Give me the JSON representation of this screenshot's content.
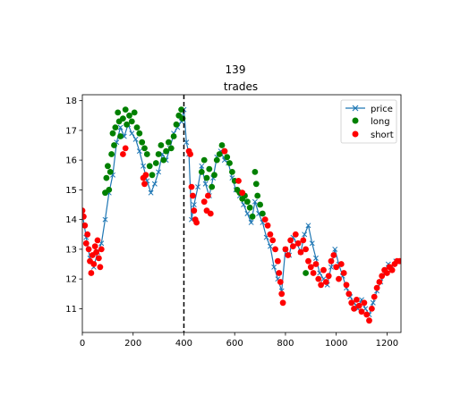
{
  "chart_data": {
    "type": "scatter",
    "suptitle": "139",
    "title": "trades",
    "xlabel": "",
    "ylabel": "",
    "xlim": [
      0,
      1255
    ],
    "ylim": [
      10.2,
      18.2
    ],
    "xticks": [
      0,
      200,
      400,
      600,
      800,
      1000,
      1200
    ],
    "yticks": [
      11,
      12,
      13,
      14,
      15,
      16,
      17,
      18
    ],
    "grid": false,
    "legend_position": "top-right",
    "vline": {
      "x": 400,
      "style": "dashed",
      "color": "#000000"
    },
    "series": [
      {
        "name": "price",
        "kind": "line",
        "marker": "x",
        "color": "#1f77b4",
        "points": [
          [
            0,
            14.2
          ],
          [
            15,
            13.4
          ],
          [
            30,
            12.7
          ],
          [
            45,
            12.4
          ],
          [
            60,
            12.9
          ],
          [
            75,
            13.2
          ],
          [
            90,
            14.0
          ],
          [
            105,
            14.9
          ],
          [
            120,
            15.5
          ],
          [
            135,
            16.6
          ],
          [
            150,
            17.1
          ],
          [
            165,
            16.8
          ],
          [
            180,
            17.2
          ],
          [
            195,
            16.9
          ],
          [
            210,
            16.7
          ],
          [
            225,
            16.3
          ],
          [
            240,
            15.8
          ],
          [
            255,
            15.3
          ],
          [
            270,
            14.9
          ],
          [
            285,
            15.2
          ],
          [
            300,
            15.6
          ],
          [
            315,
            16.2
          ],
          [
            330,
            16.0
          ],
          [
            345,
            16.4
          ],
          [
            360,
            16.9
          ],
          [
            375,
            17.1
          ],
          [
            390,
            17.3
          ],
          [
            400,
            17.7
          ],
          [
            410,
            16.6
          ],
          [
            420,
            16.2
          ],
          [
            430,
            14.0
          ],
          [
            440,
            14.5
          ],
          [
            455,
            15.1
          ],
          [
            470,
            15.8
          ],
          [
            485,
            15.2
          ],
          [
            500,
            14.8
          ],
          [
            515,
            15.4
          ],
          [
            530,
            16.1
          ],
          [
            545,
            16.3
          ],
          [
            560,
            16.0
          ],
          [
            575,
            15.9
          ],
          [
            590,
            15.4
          ],
          [
            605,
            15.0
          ],
          [
            620,
            14.8
          ],
          [
            635,
            14.5
          ],
          [
            650,
            14.2
          ],
          [
            665,
            13.9
          ],
          [
            680,
            14.6
          ],
          [
            695,
            14.2
          ],
          [
            710,
            13.9
          ],
          [
            725,
            13.4
          ],
          [
            740,
            13.1
          ],
          [
            755,
            12.4
          ],
          [
            770,
            12.0
          ],
          [
            785,
            11.6
          ],
          [
            800,
            13.0
          ],
          [
            815,
            12.8
          ],
          [
            830,
            13.4
          ],
          [
            845,
            13.2
          ],
          [
            860,
            12.9
          ],
          [
            875,
            13.5
          ],
          [
            890,
            13.8
          ],
          [
            905,
            13.2
          ],
          [
            920,
            12.7
          ],
          [
            935,
            12.2
          ],
          [
            950,
            12.0
          ],
          [
            965,
            11.8
          ],
          [
            980,
            12.4
          ],
          [
            995,
            13.0
          ],
          [
            1010,
            12.5
          ],
          [
            1025,
            12.1
          ],
          [
            1040,
            11.7
          ],
          [
            1055,
            11.4
          ],
          [
            1070,
            11.2
          ],
          [
            1085,
            11.0
          ],
          [
            1100,
            11.3
          ],
          [
            1115,
            11.0
          ],
          [
            1130,
            10.8
          ],
          [
            1145,
            11.2
          ],
          [
            1160,
            11.6
          ],
          [
            1175,
            11.9
          ],
          [
            1190,
            12.2
          ],
          [
            1205,
            12.5
          ],
          [
            1220,
            12.4
          ],
          [
            1235,
            12.6
          ],
          [
            1250,
            12.6
          ]
        ]
      },
      {
        "name": "long",
        "kind": "markers",
        "marker": "o",
        "color": "#008000",
        "points": [
          [
            90,
            14.9
          ],
          [
            95,
            15.4
          ],
          [
            100,
            15.8
          ],
          [
            105,
            15.0
          ],
          [
            110,
            15.6
          ],
          [
            115,
            16.2
          ],
          [
            120,
            16.9
          ],
          [
            125,
            16.5
          ],
          [
            130,
            17.1
          ],
          [
            140,
            17.6
          ],
          [
            145,
            17.3
          ],
          [
            150,
            16.8
          ],
          [
            160,
            17.4
          ],
          [
            170,
            17.7
          ],
          [
            175,
            17.2
          ],
          [
            185,
            17.5
          ],
          [
            195,
            17.3
          ],
          [
            205,
            17.6
          ],
          [
            215,
            17.1
          ],
          [
            225,
            16.9
          ],
          [
            235,
            16.6
          ],
          [
            245,
            16.4
          ],
          [
            255,
            16.2
          ],
          [
            265,
            15.8
          ],
          [
            275,
            15.5
          ],
          [
            290,
            15.9
          ],
          [
            300,
            16.2
          ],
          [
            310,
            16.5
          ],
          [
            320,
            16.0
          ],
          [
            330,
            16.3
          ],
          [
            340,
            16.6
          ],
          [
            350,
            16.4
          ],
          [
            360,
            16.8
          ],
          [
            370,
            17.2
          ],
          [
            380,
            17.5
          ],
          [
            390,
            17.7
          ],
          [
            395,
            17.4
          ],
          [
            470,
            15.6
          ],
          [
            480,
            16.0
          ],
          [
            490,
            15.4
          ],
          [
            500,
            15.7
          ],
          [
            510,
            15.1
          ],
          [
            520,
            15.5
          ],
          [
            530,
            16.0
          ],
          [
            540,
            16.2
          ],
          [
            550,
            16.5
          ],
          [
            560,
            16.3
          ],
          [
            570,
            16.1
          ],
          [
            580,
            15.9
          ],
          [
            590,
            15.6
          ],
          [
            600,
            15.3
          ],
          [
            610,
            15.0
          ],
          [
            620,
            14.9
          ],
          [
            630,
            14.7
          ],
          [
            640,
            14.8
          ],
          [
            650,
            14.6
          ],
          [
            660,
            14.4
          ],
          [
            670,
            14.1
          ],
          [
            680,
            15.6
          ],
          [
            685,
            15.2
          ],
          [
            690,
            14.8
          ],
          [
            700,
            14.5
          ],
          [
            710,
            14.2
          ],
          [
            880,
            12.2
          ]
        ]
      },
      {
        "name": "short",
        "kind": "markers",
        "marker": "o",
        "color": "#ff0000",
        "points": [
          [
            0,
            14.3
          ],
          [
            5,
            14.1
          ],
          [
            10,
            13.8
          ],
          [
            15,
            13.2
          ],
          [
            20,
            13.5
          ],
          [
            25,
            13.0
          ],
          [
            30,
            12.6
          ],
          [
            35,
            12.2
          ],
          [
            40,
            12.8
          ],
          [
            45,
            12.5
          ],
          [
            50,
            13.1
          ],
          [
            55,
            12.9
          ],
          [
            60,
            13.3
          ],
          [
            65,
            12.7
          ],
          [
            70,
            12.4
          ],
          [
            75,
            13.0
          ],
          [
            160,
            16.2
          ],
          [
            170,
            16.4
          ],
          [
            240,
            15.4
          ],
          [
            245,
            15.2
          ],
          [
            250,
            15.5
          ],
          [
            420,
            16.3
          ],
          [
            425,
            16.2
          ],
          [
            430,
            15.1
          ],
          [
            435,
            14.8
          ],
          [
            440,
            14.3
          ],
          [
            445,
            14.0
          ],
          [
            450,
            13.9
          ],
          [
            480,
            14.6
          ],
          [
            490,
            14.3
          ],
          [
            495,
            14.8
          ],
          [
            505,
            14.2
          ],
          [
            560,
            16.3
          ],
          [
            615,
            15.3
          ],
          [
            630,
            14.9
          ],
          [
            720,
            14.0
          ],
          [
            730,
            13.8
          ],
          [
            740,
            13.5
          ],
          [
            750,
            13.3
          ],
          [
            760,
            13.0
          ],
          [
            770,
            12.6
          ],
          [
            775,
            12.2
          ],
          [
            780,
            11.9
          ],
          [
            785,
            11.5
          ],
          [
            790,
            11.2
          ],
          [
            800,
            13.0
          ],
          [
            810,
            12.8
          ],
          [
            820,
            13.3
          ],
          [
            830,
            13.1
          ],
          [
            840,
            13.5
          ],
          [
            850,
            13.2
          ],
          [
            860,
            12.9
          ],
          [
            870,
            13.3
          ],
          [
            880,
            13.0
          ],
          [
            890,
            12.6
          ],
          [
            900,
            12.4
          ],
          [
            910,
            12.2
          ],
          [
            920,
            12.5
          ],
          [
            930,
            12.0
          ],
          [
            940,
            11.8
          ],
          [
            950,
            12.3
          ],
          [
            960,
            11.9
          ],
          [
            970,
            12.1
          ],
          [
            980,
            12.6
          ],
          [
            990,
            12.8
          ],
          [
            1000,
            12.4
          ],
          [
            1010,
            12.0
          ],
          [
            1020,
            12.5
          ],
          [
            1030,
            12.2
          ],
          [
            1040,
            11.8
          ],
          [
            1050,
            11.5
          ],
          [
            1060,
            11.2
          ],
          [
            1070,
            11.0
          ],
          [
            1080,
            11.3
          ],
          [
            1090,
            11.1
          ],
          [
            1100,
            10.9
          ],
          [
            1110,
            11.2
          ],
          [
            1120,
            10.8
          ],
          [
            1130,
            10.6
          ],
          [
            1140,
            11.0
          ],
          [
            1150,
            11.4
          ],
          [
            1160,
            11.7
          ],
          [
            1170,
            11.9
          ],
          [
            1180,
            12.1
          ],
          [
            1190,
            12.3
          ],
          [
            1200,
            12.2
          ],
          [
            1210,
            12.4
          ],
          [
            1220,
            12.3
          ],
          [
            1230,
            12.5
          ],
          [
            1240,
            12.6
          ],
          [
            1250,
            12.6
          ]
        ]
      }
    ]
  }
}
